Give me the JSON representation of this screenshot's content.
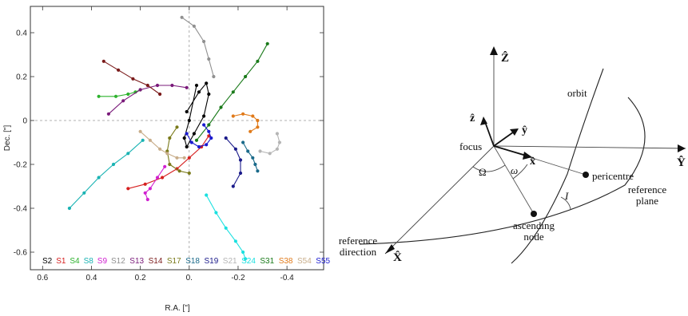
{
  "chart_data": {
    "type": "scatter",
    "xlabel": "R.A. [\"]",
    "ylabel": "Dec. [\"]",
    "xlim": [
      0.65,
      -0.55
    ],
    "ylim": [
      -0.68,
      0.52
    ],
    "x_ticks": [
      "0.6",
      "0.4",
      "0.2",
      "0.",
      "-0.2",
      "-0.4"
    ],
    "x_tick_values": [
      0.6,
      0.4,
      0.2,
      0.0,
      -0.2,
      -0.4
    ],
    "y_ticks": [
      "0.4",
      "0.2",
      "0",
      "-0.2",
      "-0.4",
      "-0.6"
    ],
    "y_tick_values": [
      0.4,
      0.2,
      0.0,
      -0.2,
      -0.4,
      -0.6
    ],
    "grid": false,
    "legend_position": "bottom",
    "series": [
      {
        "name": "S2",
        "color": "#000000",
        "x": [
          0.01,
          -0.04,
          -0.07,
          -0.08,
          -0.06,
          -0.02,
          0.01,
          0.02,
          0.0,
          -0.03
        ],
        "y": [
          0.04,
          0.13,
          0.17,
          0.12,
          0.02,
          -0.06,
          -0.12,
          -0.08,
          0.0,
          0.16
        ]
      },
      {
        "name": "S1",
        "color": "#d62020",
        "x": [
          0.25,
          0.18,
          0.11,
          0.05,
          0.0,
          -0.05,
          -0.08
        ],
        "y": [
          -0.31,
          -0.29,
          -0.26,
          -0.22,
          -0.17,
          -0.12,
          -0.07
        ]
      },
      {
        "name": "S4",
        "color": "#2db22d",
        "x": [
          0.37,
          0.3,
          0.25,
          0.22,
          0.2
        ],
        "y": [
          0.11,
          0.11,
          0.12,
          0.13,
          0.14
        ]
      },
      {
        "name": "S8",
        "color": "#1ab3b3",
        "x": [
          0.49,
          0.43,
          0.37,
          0.31,
          0.25,
          0.19
        ],
        "y": [
          -0.4,
          -0.33,
          -0.26,
          -0.2,
          -0.15,
          -0.09
        ]
      },
      {
        "name": "S9",
        "color": "#d020d0",
        "x": [
          0.17,
          0.18,
          0.16,
          0.13,
          0.1
        ],
        "y": [
          -0.36,
          -0.33,
          -0.31,
          -0.26,
          -0.21
        ]
      },
      {
        "name": "S12",
        "color": "#909090",
        "x": [
          0.03,
          -0.02,
          -0.06,
          -0.08,
          -0.1
        ],
        "y": [
          0.47,
          0.43,
          0.36,
          0.28,
          0.2
        ]
      },
      {
        "name": "S13",
        "color": "#7a1a7a",
        "x": [
          0.33,
          0.27,
          0.2,
          0.13,
          0.07,
          0.01
        ],
        "y": [
          0.03,
          0.09,
          0.14,
          0.16,
          0.16,
          0.15
        ]
      },
      {
        "name": "S14",
        "color": "#7a1a1a",
        "x": [
          0.35,
          0.29,
          0.23,
          0.17,
          0.12
        ],
        "y": [
          0.27,
          0.23,
          0.19,
          0.16,
          0.12
        ]
      },
      {
        "name": "S17",
        "color": "#7a7a1a",
        "x": [
          0.05,
          0.08,
          0.09,
          0.08,
          0.04,
          0.0
        ],
        "y": [
          -0.03,
          -0.08,
          -0.14,
          -0.2,
          -0.23,
          -0.24
        ]
      },
      {
        "name": "S18",
        "color": "#1a6a8a",
        "x": [
          -0.22,
          -0.24,
          -0.26,
          -0.27,
          -0.28
        ],
        "y": [
          -0.1,
          -0.14,
          -0.17,
          -0.2,
          -0.23
        ]
      },
      {
        "name": "S19",
        "color": "#1a1a8a",
        "x": [
          -0.15,
          -0.19,
          -0.21,
          -0.21,
          -0.18
        ],
        "y": [
          -0.08,
          -0.13,
          -0.18,
          -0.24,
          -0.3
        ]
      },
      {
        "name": "S21",
        "color": "#b5b5b5",
        "x": [
          -0.36,
          -0.37,
          -0.36,
          -0.33,
          -0.29
        ],
        "y": [
          -0.06,
          -0.1,
          -0.13,
          -0.15,
          -0.14
        ]
      },
      {
        "name": "S24",
        "color": "#1ae0e0",
        "x": [
          -0.07,
          -0.11,
          -0.15,
          -0.19,
          -0.22,
          -0.23
        ],
        "y": [
          -0.34,
          -0.42,
          -0.49,
          -0.55,
          -0.6,
          -0.63
        ]
      },
      {
        "name": "S31",
        "color": "#1a7a1a",
        "x": [
          -0.03,
          -0.08,
          -0.13,
          -0.18,
          -0.23,
          -0.28,
          -0.32
        ],
        "y": [
          -0.09,
          -0.02,
          0.06,
          0.13,
          0.2,
          0.27,
          0.35
        ]
      },
      {
        "name": "S38",
        "color": "#e07a1a",
        "x": [
          -0.18,
          -0.22,
          -0.26,
          -0.28,
          -0.28,
          -0.25
        ],
        "y": [
          0.02,
          0.03,
          0.02,
          0.0,
          -0.03,
          -0.05
        ]
      },
      {
        "name": "S54",
        "color": "#c8ad8a",
        "x": [
          0.2,
          0.16,
          0.12,
          0.09,
          0.05,
          0.02
        ],
        "y": [
          -0.05,
          -0.09,
          -0.13,
          -0.15,
          -0.17,
          -0.17
        ]
      },
      {
        "name": "S55",
        "color": "#1a1ad0",
        "x": [
          -0.06,
          -0.08,
          -0.09,
          -0.07,
          -0.04,
          -0.01,
          0.01
        ],
        "y": [
          -0.02,
          -0.05,
          -0.08,
          -0.11,
          -0.12,
          -0.1,
          -0.06
        ]
      }
    ]
  },
  "diagram": {
    "labels": {
      "z_big": "Ẑ",
      "z_small": "ẑ",
      "y_small": "ŷ",
      "x_small": "x̂",
      "y_big": "Ŷ",
      "x_big": "X̂",
      "focus": "focus",
      "omega_big": "Ω",
      "omega_small": "ω",
      "inclination": "I",
      "pericentre": "pericentre",
      "ascending_line1": "ascending",
      "ascending_line2": "node",
      "orbit": "orbit",
      "refplane_line1": "reference",
      "refplane_line2": "plane",
      "refdir_line1": "reference",
      "refdir_line2": "direction"
    }
  }
}
